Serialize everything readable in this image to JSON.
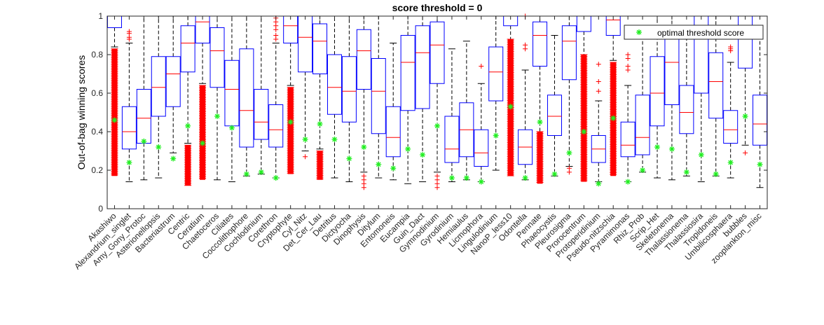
{
  "chart_data": {
    "type": "box",
    "title": "score threshold = 0",
    "ylabel": "Out-of-bag winning scores",
    "xlabel": "",
    "ylim": [
      0,
      1
    ],
    "yticks": [
      0,
      0.2,
      0.4,
      0.6,
      0.8,
      1
    ],
    "ytick_labels": [
      "0",
      "0.2",
      "0.4",
      "0.6",
      "0.8",
      "1"
    ],
    "legend": {
      "label": "optimal threshold score",
      "placement": "top-right"
    },
    "colors": {
      "box": "#0000ff",
      "median": "#ff0000",
      "whisker": "#000000",
      "outlier": "#ff0000",
      "optimal": "#22ee22"
    },
    "categories": [
      "Akashiwo",
      "Alexandrium_singlet",
      "Amy_Gony_Protoc",
      "Asterionellopsis",
      "Bacteriastrum",
      "Centric",
      "Ceratium",
      "Chaetoceros",
      "Ciliates",
      "Coccolithophore",
      "Cochlodinium",
      "Corethron",
      "Cryptophyte",
      "Cyl_Nitz",
      "Det_Cer_Lau",
      "Detritus",
      "Dictyocha",
      "Dinophysis",
      "Ditylum",
      "Entomoneis",
      "Eucampia",
      "Guin_Dact",
      "Gymnodinium",
      "Gyrodinium",
      "Hemiaulus",
      "Licmophora",
      "Lingulodinium",
      "NanoP_less10",
      "Odontella",
      "Pennate",
      "Phaeocystis",
      "Pleurosigma",
      "Prorocentrum",
      "Protoperidinium",
      "Pseudo-nitzschia",
      "Pyramimonas",
      "Rhiz_Prob",
      "Scrip_Het",
      "Skeletonema",
      "Thalassionema",
      "Thalassiosira",
      "Tropidoneis",
      "Umbilicosphaera",
      "bubbles",
      "zooplankton_misc"
    ],
    "boxes": [
      {
        "q1": 0.94,
        "median": 1.0,
        "q3": 1.0,
        "whisker_low": 0.84,
        "whisker_high": 1.0,
        "optimal": 0.46,
        "outliers_dense": [
          0.17,
          0.83
        ]
      },
      {
        "q1": 0.31,
        "median": 0.4,
        "q3": 0.53,
        "whisker_low": 0.14,
        "whisker_high": 0.86,
        "optimal": 0.24,
        "outliers": [
          0.88,
          0.89,
          0.91,
          0.92
        ]
      },
      {
        "q1": 0.34,
        "median": 0.47,
        "q3": 0.62,
        "whisker_low": 0.15,
        "whisker_high": 1.0,
        "optimal": 0.35
      },
      {
        "q1": 0.48,
        "median": 0.63,
        "q3": 0.79,
        "whisker_low": 0.16,
        "whisker_high": 1.0,
        "optimal": 0.32
      },
      {
        "q1": 0.53,
        "median": 0.7,
        "q3": 0.79,
        "whisker_low": 0.29,
        "whisker_high": 1.0,
        "optimal": 0.26
      },
      {
        "q1": 0.71,
        "median": 0.86,
        "q3": 0.95,
        "whisker_low": 0.34,
        "whisker_high": 1.0,
        "optimal": 0.43,
        "outliers_dense": [
          0.12,
          0.33
        ]
      },
      {
        "q1": 0.86,
        "median": 0.97,
        "q3": 1.0,
        "whisker_low": 0.65,
        "whisker_high": 1.0,
        "optimal": 0.34,
        "outliers_dense": [
          0.15,
          0.64
        ]
      },
      {
        "q1": 0.63,
        "median": 0.82,
        "q3": 0.94,
        "whisker_low": 0.15,
        "whisker_high": 1.0,
        "optimal": 0.48
      },
      {
        "q1": 0.43,
        "median": 0.62,
        "q3": 0.77,
        "whisker_low": 0.14,
        "whisker_high": 1.0,
        "optimal": 0.42
      },
      {
        "q1": 0.32,
        "median": 0.51,
        "q3": 0.83,
        "whisker_low": 0.17,
        "whisker_high": 1.0,
        "optimal": 0.18
      },
      {
        "q1": 0.36,
        "median": 0.45,
        "q3": 0.62,
        "whisker_low": 0.18,
        "whisker_high": 1.0,
        "optimal": 0.19
      },
      {
        "q1": 0.32,
        "median": 0.41,
        "q3": 0.54,
        "whisker_low": 0.16,
        "whisker_high": 0.86,
        "optimal": 0.16,
        "outliers": [
          0.88,
          0.9,
          0.93,
          0.95,
          0.97,
          0.99
        ]
      },
      {
        "q1": 0.86,
        "median": 0.95,
        "q3": 1.0,
        "whisker_low": 0.64,
        "whisker_high": 1.0,
        "optimal": 0.45,
        "outliers_dense": [
          0.18,
          0.63
        ]
      },
      {
        "q1": 0.71,
        "median": 0.89,
        "q3": 1.0,
        "whisker_low": 0.3,
        "whisker_high": 1.0,
        "optimal": 0.36,
        "outliers": [
          0.27
        ]
      },
      {
        "q1": 0.7,
        "median": 0.87,
        "q3": 0.96,
        "whisker_low": 0.31,
        "whisker_high": 1.0,
        "optimal": 0.44,
        "outliers_dense": [
          0.15,
          0.3
        ]
      },
      {
        "q1": 0.49,
        "median": 0.63,
        "q3": 0.8,
        "whisker_low": 0.16,
        "whisker_high": 1.0,
        "optimal": 0.36
      },
      {
        "q1": 0.45,
        "median": 0.61,
        "q3": 0.79,
        "whisker_low": 0.14,
        "whisker_high": 1.0,
        "optimal": 0.26
      },
      {
        "q1": 0.62,
        "median": 0.82,
        "q3": 0.93,
        "whisker_low": 0.19,
        "whisker_high": 1.0,
        "optimal": 0.32,
        "outliers": [
          0.11,
          0.13,
          0.15,
          0.17
        ]
      },
      {
        "q1": 0.39,
        "median": 0.61,
        "q3": 0.78,
        "whisker_low": 0.16,
        "whisker_high": 1.0,
        "optimal": 0.23
      },
      {
        "q1": 0.27,
        "median": 0.37,
        "q3": 0.53,
        "whisker_low": 0.15,
        "whisker_high": 0.86,
        "optimal": 0.21
      },
      {
        "q1": 0.51,
        "median": 0.76,
        "q3": 0.9,
        "whisker_low": 0.13,
        "whisker_high": 1.0,
        "optimal": 0.31
      },
      {
        "q1": 0.52,
        "median": 0.81,
        "q3": 0.95,
        "whisker_low": 0.14,
        "whisker_high": 1.0,
        "optimal": 0.28
      },
      {
        "q1": 0.65,
        "median": 0.85,
        "q3": 0.97,
        "whisker_low": 0.19,
        "whisker_high": 1.0,
        "optimal": 0.43,
        "outliers": [
          0.11,
          0.13,
          0.15,
          0.17
        ]
      },
      {
        "q1": 0.24,
        "median": 0.31,
        "q3": 0.48,
        "whisker_low": 0.14,
        "whisker_high": 0.83,
        "optimal": 0.16
      },
      {
        "q1": 0.27,
        "median": 0.41,
        "q3": 0.55,
        "whisker_low": 0.15,
        "whisker_high": 0.87,
        "optimal": 0.16
      },
      {
        "q1": 0.22,
        "median": 0.29,
        "q3": 0.41,
        "whisker_low": 0.14,
        "whisker_high": 0.65,
        "optimal": 0.14,
        "outliers": [
          0.74
        ]
      },
      {
        "q1": 0.56,
        "median": 0.71,
        "q3": 0.84,
        "whisker_low": 0.2,
        "whisker_high": 1.0,
        "optimal": 0.38
      },
      {
        "q1": 0.95,
        "median": 1.0,
        "q3": 1.0,
        "whisker_low": 0.88,
        "whisker_high": 1.0,
        "optimal": 0.53,
        "outliers_dense": [
          0.17,
          0.88
        ]
      },
      {
        "q1": 0.23,
        "median": 0.32,
        "q3": 0.41,
        "whisker_low": 0.15,
        "whisker_high": 0.72,
        "optimal": 0.16,
        "outliers": [
          0.83,
          0.85,
          1.0
        ]
      },
      {
        "q1": 0.74,
        "median": 0.9,
        "q3": 0.97,
        "whisker_low": 0.4,
        "whisker_high": 1.0,
        "optimal": 0.45,
        "outliers_dense": [
          0.13,
          0.4
        ]
      },
      {
        "q1": 0.38,
        "median": 0.48,
        "q3": 0.59,
        "whisker_low": 0.17,
        "whisker_high": 0.9,
        "optimal": 0.18
      },
      {
        "q1": 0.67,
        "median": 0.87,
        "q3": 0.95,
        "whisker_low": 0.22,
        "whisker_high": 1.0,
        "optimal": 0.29,
        "outliers": [
          0.19,
          0.21
        ]
      },
      {
        "q1": 0.92,
        "median": 1.0,
        "q3": 1.0,
        "whisker_low": 0.8,
        "whisker_high": 1.0,
        "optimal": 0.4,
        "outliers_dense": [
          0.14,
          0.8
        ]
      },
      {
        "q1": 0.24,
        "median": 0.31,
        "q3": 0.38,
        "whisker_low": 0.14,
        "whisker_high": 0.56,
        "optimal": 0.13,
        "outliers": [
          0.61,
          0.66,
          0.75
        ]
      },
      {
        "q1": 0.9,
        "median": 0.98,
        "q3": 1.0,
        "whisker_low": 0.77,
        "whisker_high": 1.0,
        "optimal": 0.47,
        "outliers_dense": [
          0.17,
          0.76
        ]
      },
      {
        "q1": 0.27,
        "median": 0.33,
        "q3": 0.45,
        "whisker_low": 0.14,
        "whisker_high": 0.64,
        "optimal": 0.14,
        "outliers": [
          0.72,
          0.74,
          0.78,
          0.8
        ]
      },
      {
        "q1": 0.28,
        "median": 0.37,
        "q3": 0.59,
        "whisker_low": 0.19,
        "whisker_high": 0.88,
        "optimal": 0.2
      },
      {
        "q1": 0.43,
        "median": 0.6,
        "q3": 0.79,
        "whisker_low": 0.16,
        "whisker_high": 1.0,
        "optimal": 0.32
      },
      {
        "q1": 0.54,
        "median": 0.76,
        "q3": 0.9,
        "whisker_low": 0.15,
        "whisker_high": 1.0,
        "optimal": 0.31
      },
      {
        "q1": 0.39,
        "median": 0.5,
        "q3": 0.64,
        "whisker_low": 0.17,
        "whisker_high": 0.93,
        "optimal": 0.19
      },
      {
        "q1": 0.6,
        "median": 1.0,
        "q3": 1.0,
        "whisker_low": 0.14,
        "whisker_high": 1.0,
        "optimal": 0.28
      },
      {
        "q1": 0.47,
        "median": 0.66,
        "q3": 0.81,
        "whisker_low": 0.17,
        "whisker_high": 1.0,
        "optimal": 0.18
      },
      {
        "q1": 0.34,
        "median": 0.41,
        "q3": 0.51,
        "whisker_low": 0.16,
        "whisker_high": 0.76,
        "optimal": 0.24,
        "outliers": [
          0.82,
          0.83,
          0.84
        ]
      },
      {
        "q1": 0.73,
        "median": 1.0,
        "q3": 1.0,
        "whisker_low": 0.33,
        "whisker_high": 1.0,
        "optimal": 0.48,
        "outliers": [
          0.29
        ]
      },
      {
        "q1": 0.33,
        "median": 0.44,
        "q3": 0.59,
        "whisker_low": 0.11,
        "whisker_high": 0.93,
        "optimal": 0.23
      }
    ]
  }
}
